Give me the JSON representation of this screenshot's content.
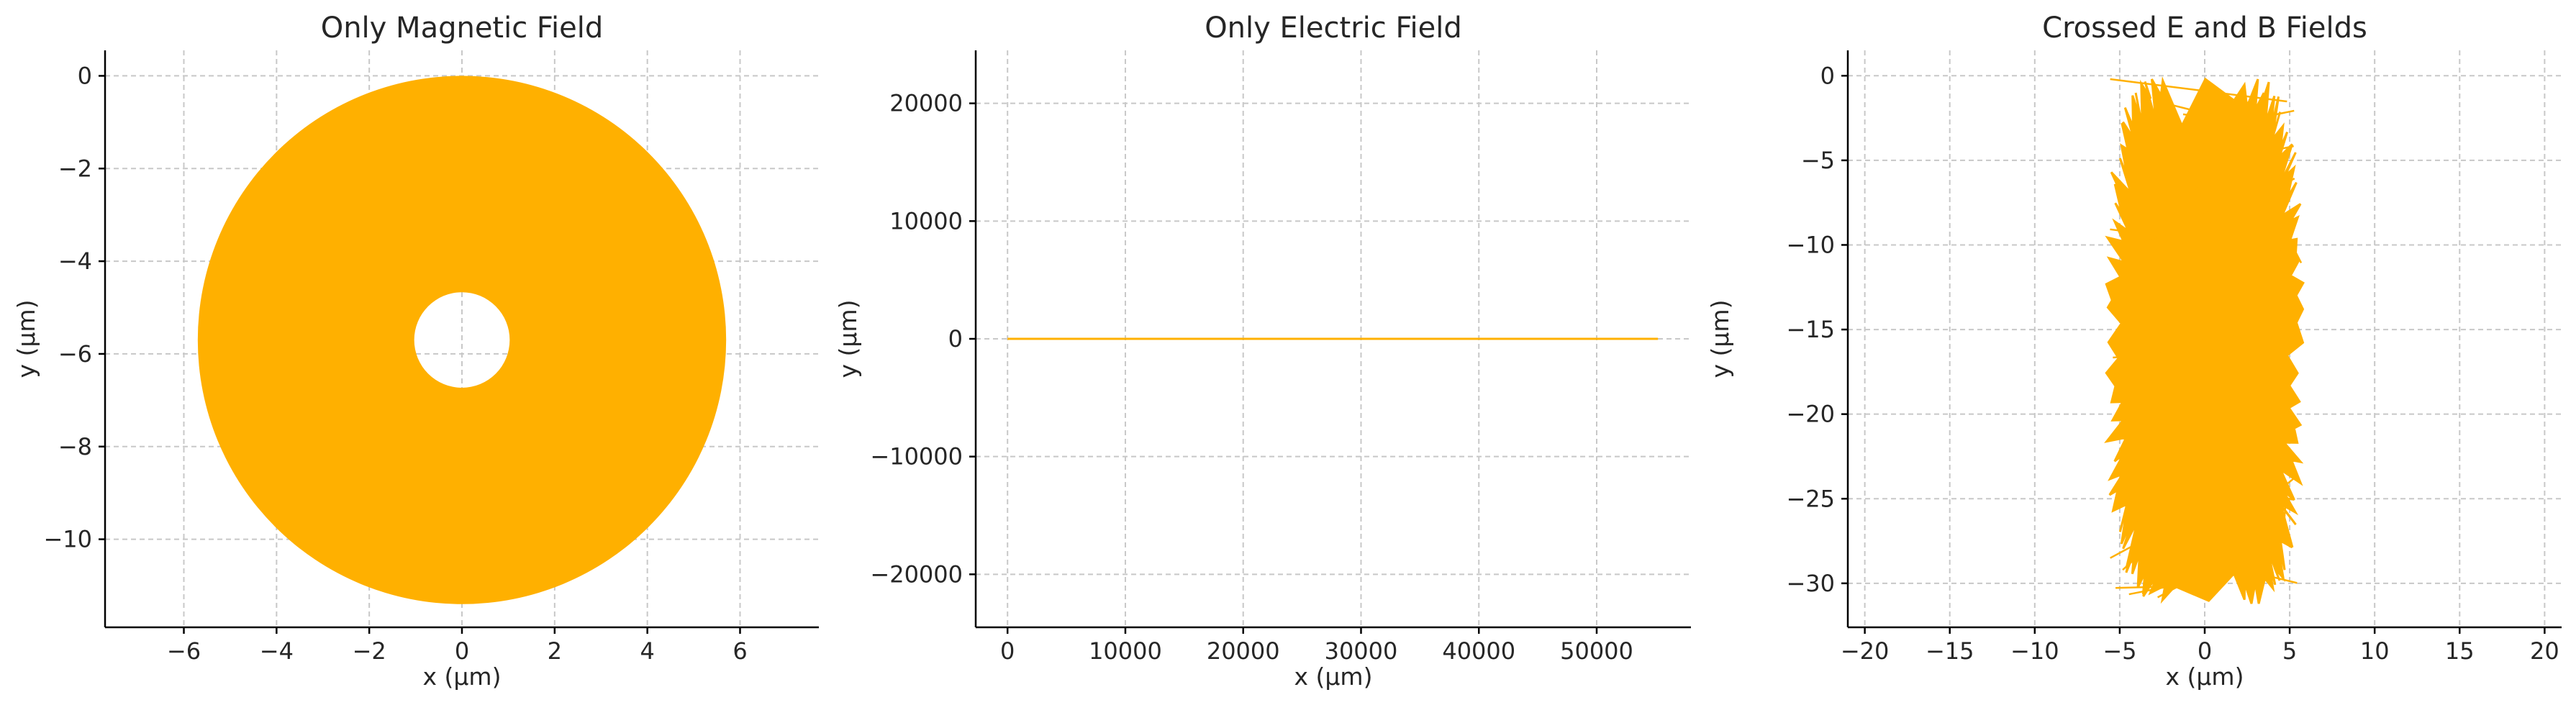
{
  "colors": {
    "trajectory": "#FFB000",
    "grid": "#c8c8c8",
    "background": "#ffffff"
  },
  "chart_data": [
    {
      "type": "line",
      "title": "Only Magnetic Field",
      "xlabel": "x (μm)",
      "ylabel": "y (μm)",
      "xlim": [
        -7.7,
        7.7
      ],
      "ylim": [
        -11.9,
        0.55
      ],
      "xticks": [
        -6,
        -4,
        -2,
        0,
        2,
        4,
        6
      ],
      "yticks": [
        0,
        -2,
        -4,
        -6,
        -8,
        -10
      ],
      "grid": true,
      "series": [
        {
          "shape": "filled annulus",
          "center": [
            0,
            -5.7
          ],
          "outer_radius": 5.7,
          "inner_radius": 1.03,
          "color": "#FFB000"
        }
      ]
    },
    {
      "type": "line",
      "title": "Only Electric Field",
      "xlabel": "x (μm)",
      "ylabel": "y (μm)",
      "xlim": [
        -2700,
        58000
      ],
      "ylim": [
        -24500,
        24500
      ],
      "xticks": [
        0,
        10000,
        20000,
        30000,
        40000,
        50000
      ],
      "yticks": [
        20000,
        10000,
        0,
        -10000,
        -20000
      ],
      "grid": true,
      "series": [
        {
          "x": [
            0,
            55200
          ],
          "y": [
            0,
            0
          ],
          "color": "#FFB000"
        }
      ]
    },
    {
      "type": "line",
      "title": "Crossed E and B Fields",
      "xlabel": "x (μm)",
      "ylabel": "y (μm)",
      "xlim": [
        -21,
        21
      ],
      "ylim": [
        -32.6,
        1.5
      ],
      "xticks": [
        -20,
        -15,
        -10,
        -5,
        0,
        5,
        10,
        15,
        20
      ],
      "yticks": [
        0,
        -5,
        -10,
        -15,
        -20,
        -25,
        -30
      ],
      "grid": true,
      "series": [
        {
          "shape": "spiky filled region",
          "x_extent": [
            -5.7,
            5.7
          ],
          "y_extent": [
            -31.2,
            -0.2
          ],
          "color": "#FFB000"
        }
      ]
    }
  ]
}
